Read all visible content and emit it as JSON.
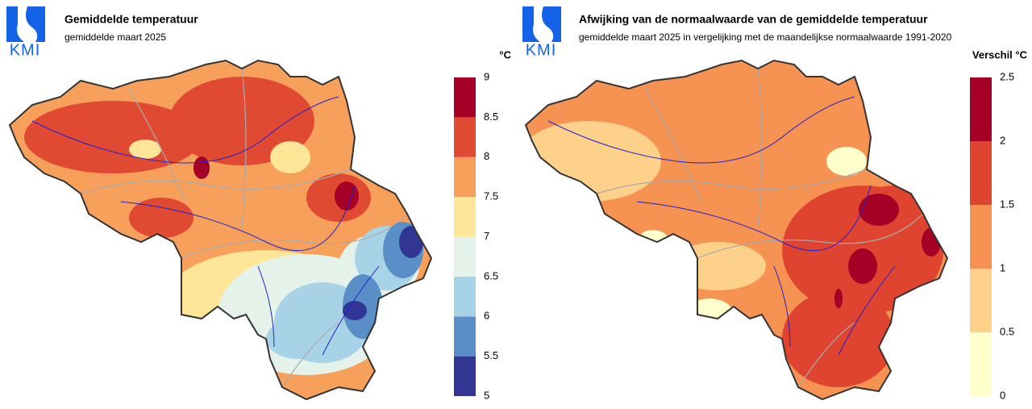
{
  "maps": [
    {
      "logo": "KMI",
      "title": "Gemiddelde temperatuur",
      "subtitle": "gemiddelde maart 2025",
      "legend": {
        "unit": "°C",
        "ticks": [
          5,
          5.5,
          6,
          6.5,
          7,
          7.5,
          8,
          8.5,
          9
        ],
        "colors": [
          "#313695",
          "#5a8ec6",
          "#a8d2e6",
          "#e4f2ea",
          "#fee597",
          "#f6a05c",
          "#e04a32",
          "#a50026"
        ]
      }
    },
    {
      "logo": "KMI",
      "title": "Afwijking van de normaalwaarde van de gemiddelde temperatuur",
      "subtitle": "gemiddelde maart 2025 in vergelijking met de maandelijkse normaalwaarde 1991-2020",
      "legend": {
        "unit": "Verschil °C",
        "ticks": [
          0,
          0.5,
          1,
          1.5,
          2,
          2.5
        ],
        "colors": [
          "#ffffcc",
          "#fdd18a",
          "#f79352",
          "#df4430",
          "#a50026"
        ]
      }
    }
  ]
}
